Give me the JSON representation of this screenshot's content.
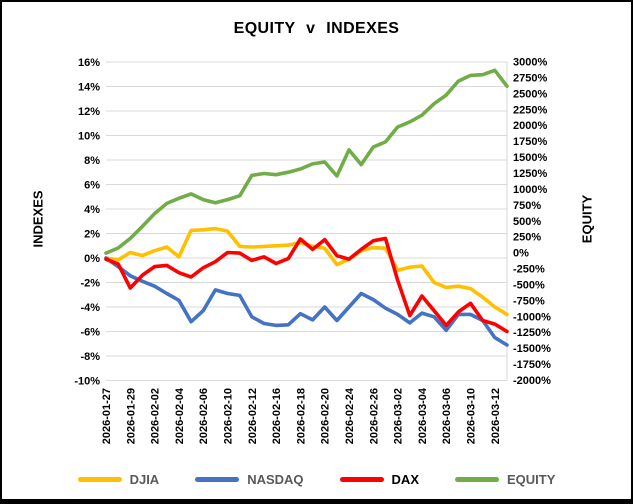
{
  "chart_data": {
    "type": "line",
    "title": "EQUITY v INDEXES",
    "left_axis": {
      "title": "INDEXES",
      "min": -10,
      "max": 16,
      "step": 2,
      "ticks": [
        "16%",
        "14%",
        "12%",
        "10%",
        "8%",
        "6%",
        "4%",
        "2%",
        "0%",
        "-2%",
        "-4%",
        "-6%",
        "-8%",
        "-10%"
      ]
    },
    "right_axis": {
      "title": "EQUITY",
      "min": -2000,
      "max": 3000,
      "step": 250,
      "ticks": [
        "3000%",
        "2750%",
        "2500%",
        "2250%",
        "2000%",
        "1750%",
        "1500%",
        "1250%",
        "1000%",
        "750%",
        "500%",
        "250%",
        "0%",
        "-250%",
        "-500%",
        "-750%",
        "-1000%",
        "-1250%",
        "-1500%",
        "-1750%",
        "-2000%"
      ]
    },
    "categories": [
      "2026-01-27",
      "2026-01-28",
      "2026-01-29",
      "2026-01-30",
      "2026-02-02",
      "2026-02-03",
      "2026-02-04",
      "2026-02-05",
      "2026-02-06",
      "2026-02-09",
      "2026-02-10",
      "2026-02-11",
      "2026-02-12",
      "2026-02-13",
      "2026-02-16",
      "2026-02-17",
      "2026-02-18",
      "2026-02-19",
      "2026-02-20",
      "2026-02-23",
      "2026-02-24",
      "2026-02-25",
      "2026-02-26",
      "2026-02-27",
      "2026-03-02",
      "2026-03-03",
      "2026-03-04",
      "2026-03-05",
      "2026-03-06",
      "2026-03-09",
      "2026-03-10",
      "2026-03-11",
      "2026-03-12",
      "2026-03-13"
    ],
    "x_tick_labels": [
      "2026-01-27",
      "2026-01-29",
      "2026-02-02",
      "2026-02-04",
      "2026-02-06",
      "2026-02-10",
      "2026-02-12",
      "2026-02-16",
      "2026-02-18",
      "2026-02-20",
      "2026-02-24",
      "2026-02-26",
      "2026-03-02",
      "2026-03-04",
      "2026-03-06",
      "2026-03-10",
      "2026-03-12"
    ],
    "x_tick_every": 2,
    "grid": true,
    "legend_position": "bottom",
    "series": [
      {
        "name": "DJIA",
        "color": "#FFC000",
        "label_color": "#595959",
        "axis": "left",
        "values": [
          0,
          -0.15,
          0.45,
          0.2,
          0.6,
          0.9,
          0.1,
          2.25,
          2.3,
          2.4,
          2.2,
          0.95,
          0.9,
          0.95,
          1.0,
          1.05,
          1.25,
          0.95,
          0.8,
          -0.55,
          -0.1,
          0.6,
          0.85,
          0.8,
          -1.0,
          -0.75,
          -0.65,
          -2.0,
          -2.4,
          -2.3,
          -2.5,
          -3.2,
          -4.0,
          -4.6
        ]
      },
      {
        "name": "NASDAQ",
        "color": "#4472C4",
        "label_color": "#595959",
        "axis": "left",
        "values": [
          0,
          -0.7,
          -1.45,
          -1.9,
          -2.3,
          -2.9,
          -3.45,
          -5.2,
          -4.3,
          -2.6,
          -2.9,
          -3.05,
          -4.8,
          -5.35,
          -5.5,
          -5.45,
          -4.55,
          -5.05,
          -4.0,
          -5.1,
          -4.0,
          -2.9,
          -3.4,
          -4.1,
          -4.6,
          -5.3,
          -4.5,
          -4.8,
          -5.9,
          -4.6,
          -4.6,
          -5.1,
          -6.5,
          -7.1
        ]
      },
      {
        "name": "DAX",
        "color": "#FF0000",
        "label_color": "#000000",
        "axis": "left",
        "values": [
          -0.1,
          -0.5,
          -2.45,
          -1.4,
          -0.7,
          -0.6,
          -1.2,
          -1.55,
          -0.8,
          -0.3,
          0.45,
          0.4,
          -0.2,
          0.1,
          -0.45,
          -0.05,
          1.55,
          0.7,
          1.5,
          0.2,
          -0.1,
          0.7,
          1.4,
          1.6,
          -1.8,
          -4.7,
          -3.1,
          -4.3,
          -5.5,
          -4.4,
          -3.7,
          -5.1,
          -5.4,
          -6.0
        ]
      },
      {
        "name": "EQUITY",
        "color": "#70AD47",
        "label_color": "#595959",
        "axis": "right",
        "values": [
          0,
          80,
          230,
          420,
          620,
          780,
          860,
          930,
          840,
          790,
          840,
          900,
          1220,
          1250,
          1230,
          1270,
          1320,
          1400,
          1430,
          1210,
          1620,
          1390,
          1665,
          1745,
          1980,
          2060,
          2165,
          2345,
          2480,
          2700,
          2790,
          2800,
          2870,
          2620
        ]
      }
    ],
    "colors": {
      "gridline": "#D9D9D9",
      "text": "#000000",
      "frame": "#000000",
      "background": "#FFFFFF"
    }
  }
}
